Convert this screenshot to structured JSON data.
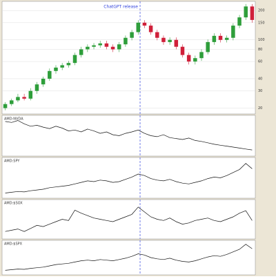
{
  "chart_data": [
    {
      "type": "candlestick",
      "annotation": "ChatGPT release",
      "open": [
        20,
        22,
        24,
        26,
        25,
        30,
        35,
        40,
        48,
        52,
        55,
        58,
        70,
        80,
        85,
        88,
        92,
        85,
        80,
        90,
        105,
        120,
        150,
        140,
        120,
        105,
        95,
        100,
        85,
        70,
        60,
        65,
        75,
        95,
        110,
        100,
        105,
        140,
        170,
        220
      ],
      "high": [
        23,
        25,
        28,
        28,
        32,
        37,
        42,
        51,
        55,
        58,
        61,
        74,
        85,
        90,
        93,
        98,
        98,
        90,
        95,
        111,
        127,
        159,
        159,
        148,
        127,
        111,
        106,
        106,
        90,
        74,
        69,
        80,
        101,
        117,
        117,
        111,
        148,
        180,
        233,
        233
      ],
      "low": [
        19,
        21,
        23,
        24,
        24,
        28,
        33,
        38,
        45,
        49,
        52,
        55,
        66,
        75,
        80,
        83,
        80,
        75,
        75,
        85,
        99,
        113,
        132,
        113,
        99,
        89,
        89,
        80,
        66,
        56,
        56,
        61,
        71,
        89,
        94,
        94,
        99,
        132,
        160,
        150
      ],
      "close": [
        22,
        24,
        26,
        25,
        30,
        35,
        40,
        48,
        52,
        55,
        58,
        70,
        80,
        85,
        88,
        92,
        85,
        80,
        90,
        105,
        120,
        150,
        140,
        120,
        105,
        95,
        100,
        85,
        70,
        60,
        65,
        75,
        95,
        110,
        100,
        105,
        140,
        170,
        220,
        160
      ],
      "up_color": "#2e9e3a",
      "down_color": "#d0203a",
      "log_scale": true,
      "ylim": [
        18,
        240
      ],
      "yticks": [
        20,
        30,
        40,
        60,
        80,
        100,
        150,
        200
      ],
      "grid": true
    },
    {
      "type": "line",
      "title": "AMD:NVDA",
      "color": "#111111",
      "ylim": [
        10,
        90
      ],
      "values": [
        80,
        78,
        82,
        75,
        70,
        72,
        68,
        65,
        70,
        66,
        60,
        62,
        58,
        64,
        60,
        55,
        58,
        52,
        50,
        55,
        58,
        62,
        55,
        50,
        48,
        52,
        46,
        44,
        42,
        45,
        40,
        38,
        35,
        32,
        30,
        28,
        26,
        24,
        22,
        20
      ]
    },
    {
      "type": "line",
      "title": "AMD:SPY",
      "color": "#111111",
      "ylim": [
        0,
        100
      ],
      "values": [
        10,
        12,
        14,
        13,
        16,
        18,
        20,
        24,
        26,
        28,
        30,
        34,
        38,
        42,
        40,
        44,
        42,
        38,
        40,
        46,
        52,
        60,
        56,
        48,
        44,
        42,
        46,
        40,
        36,
        34,
        38,
        42,
        48,
        52,
        50,
        56,
        64,
        72,
        88,
        74
      ]
    },
    {
      "type": "line",
      "title": "AMD:$SOX",
      "color": "#111111",
      "ylim": [
        30,
        90
      ],
      "values": [
        40,
        42,
        44,
        40,
        45,
        50,
        48,
        52,
        56,
        60,
        58,
        75,
        70,
        66,
        62,
        60,
        58,
        56,
        60,
        64,
        68,
        80,
        72,
        64,
        60,
        58,
        62,
        56,
        52,
        54,
        58,
        60,
        62,
        58,
        56,
        60,
        64,
        70,
        74,
        58
      ]
    },
    {
      "type": "line",
      "title": "AMD:$SPX",
      "color": "#111111",
      "ylim": [
        0,
        100
      ],
      "values": [
        10,
        12,
        14,
        13,
        16,
        18,
        20,
        24,
        28,
        30,
        32,
        36,
        40,
        42,
        40,
        44,
        42,
        40,
        44,
        48,
        54,
        62,
        58,
        50,
        46,
        44,
        48,
        42,
        38,
        36,
        40,
        46,
        52,
        56,
        54,
        60,
        68,
        76,
        92,
        78
      ]
    }
  ]
}
